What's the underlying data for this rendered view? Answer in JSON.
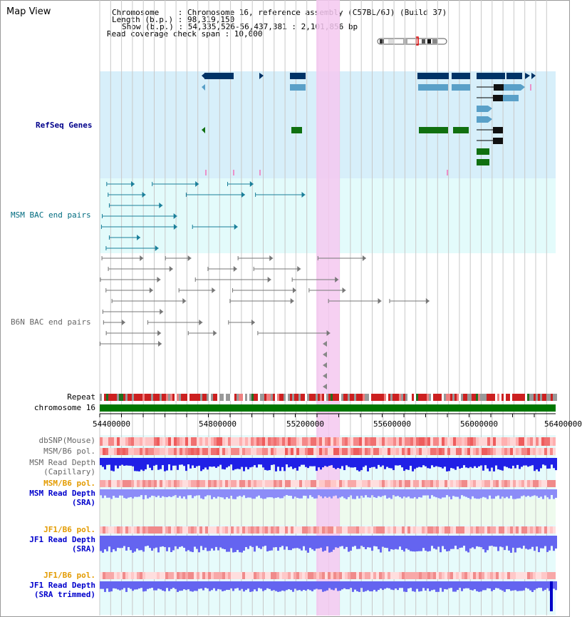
{
  "panel_title": "Map View",
  "info": {
    "chromosome_line": "Chromosome    : Chromosome 16, reference assembly (C57BL/6J) (Build 37)",
    "length_line": "Length (b.p.) : 98,319,150",
    "show_line": "Show (b.p.) : 54,335,526-56,437,381 : 2,101,856 bp",
    "span_line": "Read coverage check span : 10,000"
  },
  "tracks": {
    "refseq": "RefSeq Genes",
    "msm_bac": "MSM BAC end pairs",
    "b6n_bac": "B6N BAC end pairs",
    "repeat": "Repeat",
    "chromosome": "chromosome 16",
    "dbsnp": "dbSNP(Mouse)",
    "msm_pol": "MSM/B6 pol.",
    "msm_read_cap_1": "MSM Read Depth",
    "msm_read_cap_2": "(Capillary)",
    "msm_pol_2": "MSM/B6 pol.",
    "msm_sra_1": "MSM Read Depth",
    "msm_sra_2": "(SRA)",
    "jf1_pol": "JF1/B6 pol.",
    "jf1_sra_1": "JF1 Read Depth",
    "jf1_sra_2": "(SRA)",
    "jf1_pol_2": "JF1/B6 pol.",
    "jf1_trim_1": "JF1 Read Depth",
    "jf1_trim_2": "(SRA trimmed)"
  },
  "ticks": [
    "54400000",
    "54800000",
    "55200000",
    "55600000",
    "56000000",
    "56400000"
  ],
  "colors": {
    "refseq_bg": "#d7effa",
    "bac_bg": "#e3fbfb",
    "sra_bg": "#effaef",
    "highlight": "#f5c8f0",
    "chrom_green": "#007700",
    "gene_navy": "#003366",
    "gene_lightblue": "#5aa0c8",
    "gene_green": "#107010"
  }
}
